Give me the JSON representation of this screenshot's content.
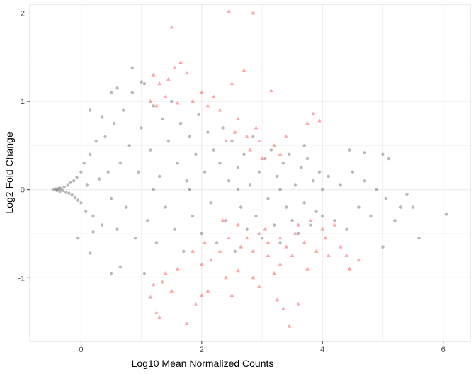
{
  "chart_data": {
    "type": "scatter",
    "title": "",
    "xlabel": "Log10 Mean Normalized Counts",
    "ylabel": "Log2 Fold Change",
    "xlim": [
      -0.85,
      6.45
    ],
    "ylim": [
      -1.72,
      2.1
    ],
    "x_ticks": [
      0,
      2,
      4,
      6
    ],
    "y_ticks": [
      -1,
      0,
      1,
      2
    ],
    "x_tick_labels": [
      "0",
      "2",
      "4",
      "6"
    ],
    "y_tick_labels": [
      "-1",
      "0",
      "1",
      "2"
    ],
    "grid": true,
    "legend": "none",
    "colors": {
      "non_significant": "#333333",
      "significant": "#ff0000",
      "panel_border": "#d9d9d9",
      "grid": "#ebebeb"
    },
    "series": [
      {
        "marker": "circle",
        "color": "#333333",
        "points": [
          [
            -0.45,
            0.0
          ],
          [
            -0.42,
            0.01
          ],
          [
            -0.4,
            -0.01
          ],
          [
            -0.38,
            0.0
          ],
          [
            -0.36,
            0.02
          ],
          [
            -0.35,
            -0.02
          ],
          [
            -0.33,
            0.01
          ],
          [
            -0.3,
            -0.01
          ],
          [
            -0.28,
            0.03
          ],
          [
            -0.25,
            -0.03
          ],
          [
            -0.22,
            0.05
          ],
          [
            -0.2,
            -0.04
          ],
          [
            -0.18,
            0.08
          ],
          [
            -0.15,
            -0.06
          ],
          [
            -0.12,
            0.1
          ],
          [
            -0.1,
            -0.09
          ],
          [
            -0.07,
            0.14
          ],
          [
            -0.05,
            -0.12
          ],
          [
            0.0,
            0.2
          ],
          [
            0.0,
            -0.15
          ],
          [
            0.05,
            0.3
          ],
          [
            0.08,
            -0.25
          ],
          [
            0.1,
            0.05
          ],
          [
            0.15,
            0.4
          ],
          [
            0.2,
            -0.3
          ],
          [
            0.25,
            0.55
          ],
          [
            0.3,
            0.12
          ],
          [
            0.35,
            -0.4
          ],
          [
            0.4,
            0.6
          ],
          [
            0.45,
            0.2
          ],
          [
            0.5,
            -0.1
          ],
          [
            0.55,
            0.75
          ],
          [
            0.6,
            -0.45
          ],
          [
            0.65,
            0.3
          ],
          [
            0.7,
            0.9
          ],
          [
            0.75,
            -0.2
          ],
          [
            0.8,
            0.5
          ],
          [
            0.85,
            1.1
          ],
          [
            0.9,
            -0.55
          ],
          [
            0.95,
            0.2
          ],
          [
            1.0,
            0.7
          ],
          [
            1.05,
            1.2
          ],
          [
            1.1,
            -0.35
          ],
          [
            1.15,
            0.45
          ],
          [
            1.2,
            0.95
          ],
          [
            1.25,
            -0.6
          ],
          [
            1.3,
            0.15
          ],
          [
            1.35,
            0.8
          ],
          [
            1.4,
            -0.2
          ],
          [
            1.45,
            0.55
          ],
          [
            1.5,
            1.0
          ],
          [
            1.55,
            -0.45
          ],
          [
            1.6,
            0.3
          ],
          [
            1.65,
            0.75
          ],
          [
            1.7,
            -0.7
          ],
          [
            1.75,
            0.1
          ],
          [
            1.8,
            0.6
          ],
          [
            1.85,
            -0.3
          ],
          [
            1.9,
            0.4
          ],
          [
            1.95,
            0.85
          ],
          [
            2.0,
            -0.5
          ],
          [
            2.05,
            0.2
          ],
          [
            2.1,
            0.65
          ],
          [
            2.15,
            -0.15
          ],
          [
            2.2,
            0.45
          ],
          [
            2.25,
            -0.6
          ],
          [
            2.3,
            0.3
          ],
          [
            2.35,
            0.7
          ],
          [
            2.4,
            -0.35
          ],
          [
            2.45,
            0.1
          ],
          [
            2.5,
            0.55
          ],
          [
            2.55,
            -0.7
          ],
          [
            2.6,
            0.25
          ],
          [
            2.65,
            -0.2
          ],
          [
            2.7,
            0.4
          ],
          [
            2.75,
            -0.45
          ],
          [
            2.8,
            0.05
          ],
          [
            2.85,
            0.6
          ],
          [
            2.9,
            -0.3
          ],
          [
            2.95,
            0.2
          ],
          [
            3.0,
            -0.55
          ],
          [
            3.05,
            0.35
          ],
          [
            3.1,
            -0.1
          ],
          [
            3.15,
            0.45
          ],
          [
            3.2,
            -0.4
          ],
          [
            3.25,
            0.15
          ],
          [
            3.3,
            -0.6
          ],
          [
            3.35,
            0.3
          ],
          [
            3.4,
            -0.2
          ],
          [
            3.45,
            0.4
          ],
          [
            3.5,
            -0.35
          ],
          [
            3.55,
            0.05
          ],
          [
            3.6,
            -0.5
          ],
          [
            3.65,
            0.25
          ],
          [
            3.7,
            -0.15
          ],
          [
            3.75,
            0.35
          ],
          [
            3.8,
            -0.4
          ],
          [
            3.85,
            0.1
          ],
          [
            3.9,
            -0.25
          ],
          [
            3.95,
            0.2
          ],
          [
            4.0,
            -0.3
          ],
          [
            4.1,
            0.15
          ],
          [
            4.2,
            -0.35
          ],
          [
            4.3,
            0.05
          ],
          [
            4.4,
            -0.45
          ],
          [
            4.5,
            0.2
          ],
          [
            4.6,
            -0.2
          ],
          [
            4.7,
            0.1
          ],
          [
            4.8,
            -0.3
          ],
          [
            4.9,
            0.0
          ],
          [
            5.0,
            0.4
          ],
          [
            5.05,
            -0.1
          ],
          [
            5.1,
            0.35
          ],
          [
            5.2,
            -0.35
          ],
          [
            5.3,
            -0.2
          ],
          [
            5.4,
            -0.05
          ],
          [
            5.5,
            -0.2
          ],
          [
            5.6,
            -0.55
          ],
          [
            6.05,
            -0.28
          ],
          [
            5.0,
            -0.65
          ],
          [
            4.7,
            0.42
          ],
          [
            4.45,
            0.45
          ],
          [
            3.7,
            0.5
          ],
          [
            0.85,
            1.38
          ],
          [
            1.0,
            1.22
          ],
          [
            0.5,
            1.1
          ],
          [
            0.15,
            0.9
          ],
          [
            -0.05,
            -0.55
          ],
          [
            0.15,
            -0.72
          ],
          [
            0.5,
            -0.95
          ],
          [
            0.65,
            -0.88
          ],
          [
            1.05,
            -0.95
          ],
          [
            0.35,
            0.82
          ],
          [
            0.6,
            1.15
          ],
          [
            0.2,
            -0.48
          ],
          [
            1.2,
            0.0
          ],
          [
            1.8,
            0.0
          ],
          [
            2.6,
            0.0
          ],
          [
            3.3,
            0.0
          ],
          [
            4.0,
            0.0
          ]
        ]
      },
      {
        "marker": "triangle",
        "color": "#ff0000",
        "points": [
          [
            1.5,
            1.84
          ],
          [
            2.45,
            2.02
          ],
          [
            2.85,
            2.0
          ],
          [
            1.65,
            1.44
          ],
          [
            1.55,
            1.38
          ],
          [
            1.2,
            1.3
          ],
          [
            1.3,
            1.2
          ],
          [
            1.45,
            1.25
          ],
          [
            1.75,
            1.32
          ],
          [
            2.0,
            1.1
          ],
          [
            2.2,
            1.05
          ],
          [
            2.5,
            1.2
          ],
          [
            2.7,
            1.35
          ],
          [
            3.15,
            1.12
          ],
          [
            3.75,
            0.75
          ],
          [
            3.85,
            0.86
          ],
          [
            3.95,
            0.78
          ],
          [
            3.4,
            0.6
          ],
          [
            3.2,
            0.5
          ],
          [
            2.9,
            0.7
          ],
          [
            2.6,
            0.8
          ],
          [
            2.3,
            0.9
          ],
          [
            2.1,
            0.95
          ],
          [
            1.85,
            1.0
          ],
          [
            1.6,
            0.98
          ],
          [
            1.4,
            1.05
          ],
          [
            1.25,
            0.95
          ],
          [
            1.15,
            1.0
          ],
          [
            2.4,
            0.55
          ],
          [
            2.8,
            0.45
          ],
          [
            3.0,
            0.35
          ],
          [
            3.3,
            0.4
          ],
          [
            2.75,
            0.6
          ],
          [
            2.55,
            0.65
          ],
          [
            2.95,
            0.55
          ],
          [
            1.6,
            -0.9
          ],
          [
            1.4,
            -0.95
          ],
          [
            1.35,
            -1.05
          ],
          [
            1.2,
            -1.08
          ],
          [
            1.15,
            -1.22
          ],
          [
            1.25,
            -1.4
          ],
          [
            1.3,
            -1.45
          ],
          [
            1.5,
            -1.15
          ],
          [
            1.75,
            -1.52
          ],
          [
            1.9,
            -1.3
          ],
          [
            2.0,
            -1.2
          ],
          [
            2.1,
            -1.15
          ],
          [
            2.4,
            -1.0
          ],
          [
            2.6,
            -0.92
          ],
          [
            2.85,
            -1.0
          ],
          [
            2.5,
            -1.2
          ],
          [
            2.95,
            -1.1
          ],
          [
            3.25,
            -1.25
          ],
          [
            3.35,
            -1.35
          ],
          [
            3.45,
            -1.55
          ],
          [
            3.6,
            -1.3
          ],
          [
            3.1,
            -0.75
          ],
          [
            3.3,
            -0.85
          ],
          [
            3.5,
            -0.75
          ],
          [
            3.7,
            -0.6
          ],
          [
            3.9,
            -0.7
          ],
          [
            4.05,
            -0.55
          ],
          [
            4.3,
            -0.65
          ],
          [
            4.4,
            -0.75
          ],
          [
            4.6,
            -0.8
          ],
          [
            4.45,
            -0.9
          ],
          [
            3.55,
            -0.5
          ],
          [
            3.3,
            -0.55
          ],
          [
            3.1,
            -0.6
          ],
          [
            2.95,
            -0.5
          ],
          [
            2.75,
            -0.55
          ],
          [
            2.65,
            -0.65
          ],
          [
            2.85,
            -0.7
          ],
          [
            3.05,
            -0.45
          ],
          [
            3.4,
            -0.65
          ],
          [
            3.6,
            -0.4
          ],
          [
            3.8,
            -0.35
          ],
          [
            4.0,
            -0.45
          ],
          [
            4.2,
            -0.4
          ],
          [
            2.6,
            -0.4
          ],
          [
            2.45,
            -0.55
          ],
          [
            2.3,
            -0.7
          ],
          [
            2.15,
            -0.8
          ],
          [
            2.0,
            -0.85
          ],
          [
            1.85,
            -0.7
          ],
          [
            3.75,
            -0.9
          ],
          [
            3.2,
            -0.95
          ],
          [
            2.35,
            -0.35
          ],
          [
            2.05,
            -0.6
          ],
          [
            4.1,
            -0.75
          ]
        ]
      }
    ]
  }
}
